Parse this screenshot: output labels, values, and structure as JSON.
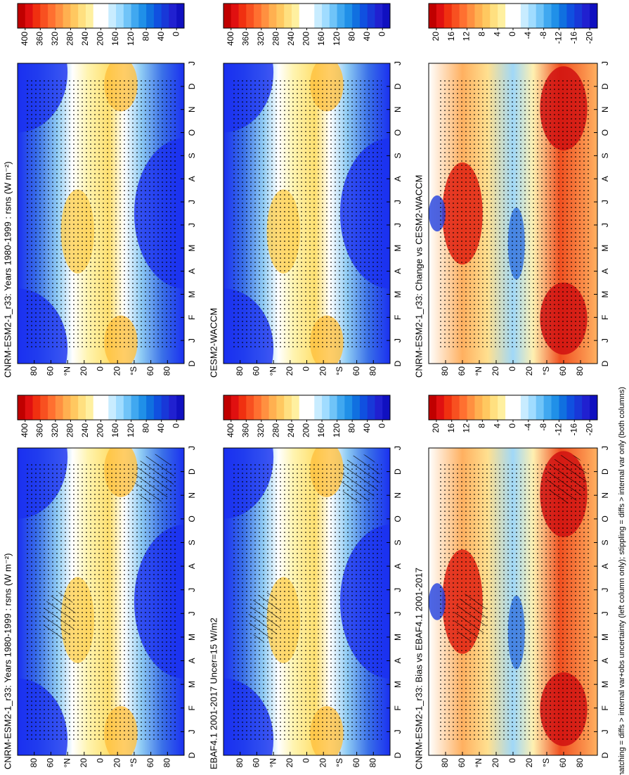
{
  "panels": [
    {
      "title": "CNRM-ESM2-1_r33: Years 1980-1999 : rsns (W m⁻²)",
      "colorbar": [
        "400",
        "360",
        "320",
        "280",
        "240",
        "200",
        "160",
        "120",
        "80",
        "40",
        "0"
      ]
    },
    {
      "title": "EBAF4.1 2001-2017 Uncer=15 W/m2",
      "colorbar": [
        "400",
        "360",
        "320",
        "280",
        "240",
        "200",
        "160",
        "120",
        "80",
        "40",
        "0"
      ]
    },
    {
      "title": "CNRM-ESM2-1_r33: Bias vs EBAF4.1 2001-2017",
      "colorbar": [
        "20",
        "16",
        "12",
        "8",
        "4",
        "0",
        "-4",
        "-8",
        "-12",
        "-16",
        "-20"
      ]
    },
    {
      "title": "CNRM-ESM2-1_r33: Years 1980-1999 : rsns (W m⁻²)",
      "colorbar": [
        "400",
        "360",
        "320",
        "280",
        "240",
        "200",
        "160",
        "120",
        "80",
        "40",
        "0"
      ]
    },
    {
      "title": "CESM2-WACCM",
      "colorbar": [
        "400",
        "360",
        "320",
        "280",
        "240",
        "200",
        "160",
        "120",
        "80",
        "40",
        "0"
      ]
    },
    {
      "title": "CNRM-ESM2-1_r33: Change vs CESM2-WACCM",
      "colorbar": [
        "20",
        "16",
        "12",
        "8",
        "4",
        "0",
        "-4",
        "-8",
        "-12",
        "-16",
        "-20"
      ]
    }
  ],
  "months": [
    "D",
    "J",
    "F",
    "M",
    "A",
    "M",
    "J",
    "J",
    "A",
    "S",
    "O",
    "N",
    "D",
    "J"
  ],
  "lat_labels": [
    "80",
    "60",
    "°N",
    "20",
    "0",
    "20",
    "°S",
    "60",
    "80"
  ],
  "caption": "hatching = diffs > internal var+obs uncertainty (left column only); stippling = diffs > internal var only (both columns)"
}
